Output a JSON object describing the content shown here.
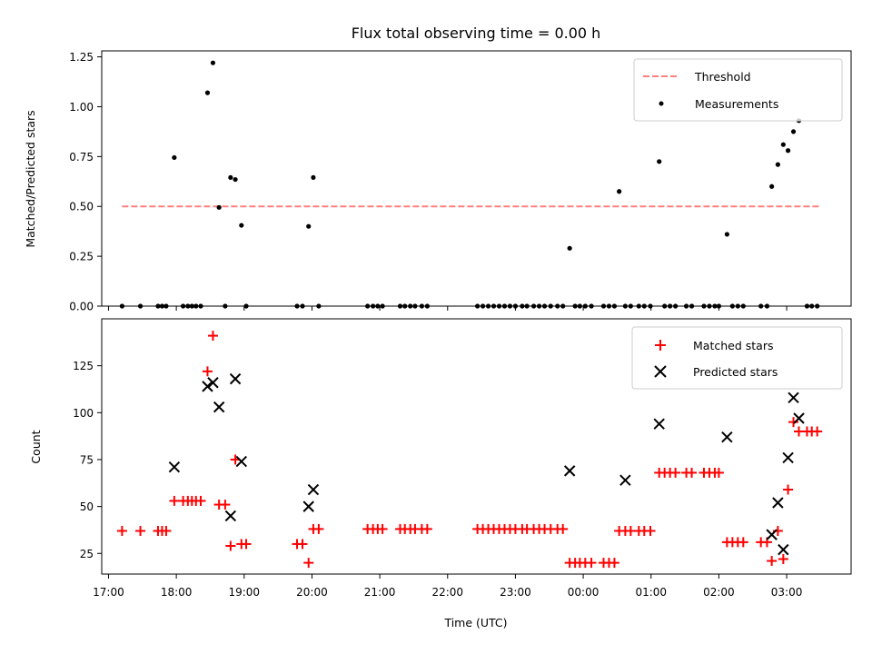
{
  "chart_data": [
    {
      "type": "scatter",
      "title": "Flux total observing time = 0.00 h",
      "xlabel": "",
      "ylabel": "Matched/Predicted stars",
      "xlim": [
        16.9,
        27.95
      ],
      "ylim": [
        0.0,
        1.28
      ],
      "yticks": [
        0.0,
        0.25,
        0.5,
        0.75,
        1.0,
        1.25
      ],
      "ytick_labels": [
        "0.00",
        "0.25",
        "0.50",
        "0.75",
        "1.00",
        "1.25"
      ],
      "xticks": [
        17,
        18,
        19,
        20,
        21,
        22,
        23,
        24,
        25,
        26,
        27
      ],
      "xtick_labels": [
        "",
        "",
        "",
        "",
        "",
        "",
        "",
        "",
        "",
        "",
        ""
      ],
      "legend": {
        "placement": "top-right",
        "entries": [
          "Threshold",
          "Measurements"
        ]
      },
      "threshold": {
        "name": "Threshold",
        "y": 0.5,
        "x_range": [
          17.2,
          27.5
        ],
        "color": "#ff7f7f",
        "style": "dashed"
      },
      "series": [
        {
          "name": "Measurements",
          "marker": "dot",
          "color": "#000000",
          "x": [
            17.2,
            17.47,
            17.73,
            17.79,
            17.85,
            17.97,
            18.1,
            18.17,
            18.23,
            18.29,
            18.36,
            18.46,
            18.54,
            18.63,
            18.72,
            18.8,
            18.87,
            18.96,
            19.03,
            19.78,
            19.86,
            19.95,
            20.02,
            20.1,
            20.82,
            20.9,
            20.97,
            21.04,
            21.3,
            21.37,
            21.45,
            21.52,
            21.62,
            21.7,
            22.44,
            22.52,
            22.6,
            22.68,
            22.76,
            22.84,
            22.92,
            23.0,
            23.1,
            23.17,
            23.27,
            23.35,
            23.43,
            23.52,
            23.62,
            23.7,
            23.8,
            23.88,
            23.95,
            24.03,
            24.12,
            24.3,
            24.38,
            24.46,
            24.53,
            24.62,
            24.7,
            24.82,
            24.9,
            24.99,
            25.12,
            25.2,
            25.28,
            25.36,
            25.52,
            25.6,
            25.78,
            25.86,
            25.94,
            26.0,
            26.12,
            26.2,
            26.28,
            26.36,
            26.62,
            26.71,
            26.78,
            26.87,
            26.95,
            27.02,
            27.1,
            27.18,
            27.3,
            27.37,
            27.45
          ],
          "y": [
            0.0,
            0.0,
            0.0,
            0.0,
            0.0,
            0.745,
            0.0,
            0.0,
            0.0,
            0.0,
            0.0,
            1.07,
            1.22,
            0.495,
            0.0,
            0.645,
            0.635,
            0.405,
            0.0,
            0.0,
            0.0,
            0.4,
            0.645,
            0.0,
            0.0,
            0.0,
            0.0,
            0.0,
            0.0,
            0.0,
            0.0,
            0.0,
            0.0,
            0.0,
            0.0,
            0.0,
            0.0,
            0.0,
            0.0,
            0.0,
            0.0,
            0.0,
            0.0,
            0.0,
            0.0,
            0.0,
            0.0,
            0.0,
            0.0,
            0.0,
            0.29,
            0.0,
            0.0,
            0.0,
            0.0,
            0.0,
            0.0,
            0.0,
            0.575,
            0.0,
            0.0,
            0.0,
            0.0,
            0.0,
            0.725,
            0.0,
            0.0,
            0.0,
            0.0,
            0.0,
            0.0,
            0.0,
            0.0,
            0.0,
            0.36,
            0.0,
            0.0,
            0.0,
            0.0,
            0.0,
            0.6,
            0.71,
            0.81,
            0.78,
            0.875,
            0.93,
            0.0,
            0.0,
            0.0
          ]
        }
      ]
    },
    {
      "type": "scatter",
      "title": "",
      "xlabel": "Time (UTC)",
      "ylabel": "Count",
      "xlim": [
        16.9,
        27.95
      ],
      "ylim": [
        14.0,
        150.0
      ],
      "yticks": [
        25,
        50,
        75,
        100,
        125
      ],
      "ytick_labels": [
        "25",
        "50",
        "75",
        "100",
        "125"
      ],
      "xticks": [
        17,
        18,
        19,
        20,
        21,
        22,
        23,
        24,
        25,
        26,
        27
      ],
      "xtick_labels": [
        "17:00",
        "18:00",
        "19:00",
        "20:00",
        "21:00",
        "22:00",
        "23:00",
        "00:00",
        "01:00",
        "02:00",
        "03:00"
      ],
      "legend": {
        "placement": "top-right",
        "entries": [
          "Matched stars",
          "Predicted stars"
        ]
      },
      "series": [
        {
          "name": "Matched stars",
          "marker": "plus",
          "color": "#ff0000",
          "x": [
            17.2,
            17.47,
            17.73,
            17.79,
            17.85,
            17.97,
            18.1,
            18.17,
            18.23,
            18.29,
            18.36,
            18.46,
            18.54,
            18.63,
            18.72,
            18.8,
            18.87,
            18.96,
            19.03,
            19.78,
            19.86,
            19.95,
            20.02,
            20.1,
            20.82,
            20.9,
            20.97,
            21.04,
            21.3,
            21.37,
            21.45,
            21.52,
            21.62,
            21.7,
            22.44,
            22.52,
            22.6,
            22.68,
            22.76,
            22.84,
            22.92,
            23.0,
            23.1,
            23.17,
            23.27,
            23.35,
            23.43,
            23.52,
            23.62,
            23.7,
            23.8,
            23.88,
            23.95,
            24.03,
            24.12,
            24.3,
            24.38,
            24.46,
            24.53,
            24.62,
            24.7,
            24.82,
            24.9,
            24.99,
            25.12,
            25.2,
            25.28,
            25.36,
            25.52,
            25.6,
            25.78,
            25.86,
            25.94,
            26.0,
            26.12,
            26.2,
            26.28,
            26.36,
            26.62,
            26.71,
            26.78,
            26.87,
            26.95,
            27.02,
            27.1,
            27.18,
            27.3,
            27.37,
            27.45
          ],
          "y": [
            37,
            37,
            37,
            37,
            37,
            53,
            53,
            53,
            53,
            53,
            53,
            122,
            141,
            51,
            51,
            29,
            75,
            30,
            30,
            30,
            30,
            20,
            38,
            38,
            38,
            38,
            38,
            38,
            38,
            38,
            38,
            38,
            38,
            38,
            38,
            38,
            38,
            38,
            38,
            38,
            38,
            38,
            38,
            38,
            38,
            38,
            38,
            38,
            38,
            38,
            20,
            20,
            20,
            20,
            20,
            20,
            20,
            20,
            37,
            37,
            37,
            37,
            37,
            37,
            68,
            68,
            68,
            68,
            68,
            68,
            68,
            68,
            68,
            68,
            31,
            31,
            31,
            31,
            31,
            31,
            21,
            37,
            22,
            59,
            95,
            90,
            90,
            90,
            90
          ]
        },
        {
          "name": "Predicted stars",
          "marker": "x",
          "color": "#000000",
          "x": [
            17.97,
            18.46,
            18.54,
            18.63,
            18.8,
            18.87,
            18.96,
            19.95,
            20.02,
            23.8,
            24.62,
            25.12,
            26.12,
            26.78,
            26.87,
            26.95,
            27.02,
            27.1,
            27.18
          ],
          "y": [
            71,
            114,
            116,
            103,
            45,
            118,
            74,
            50,
            59,
            69,
            64,
            94,
            87,
            35,
            52,
            27,
            76,
            108,
            97
          ]
        }
      ]
    }
  ]
}
